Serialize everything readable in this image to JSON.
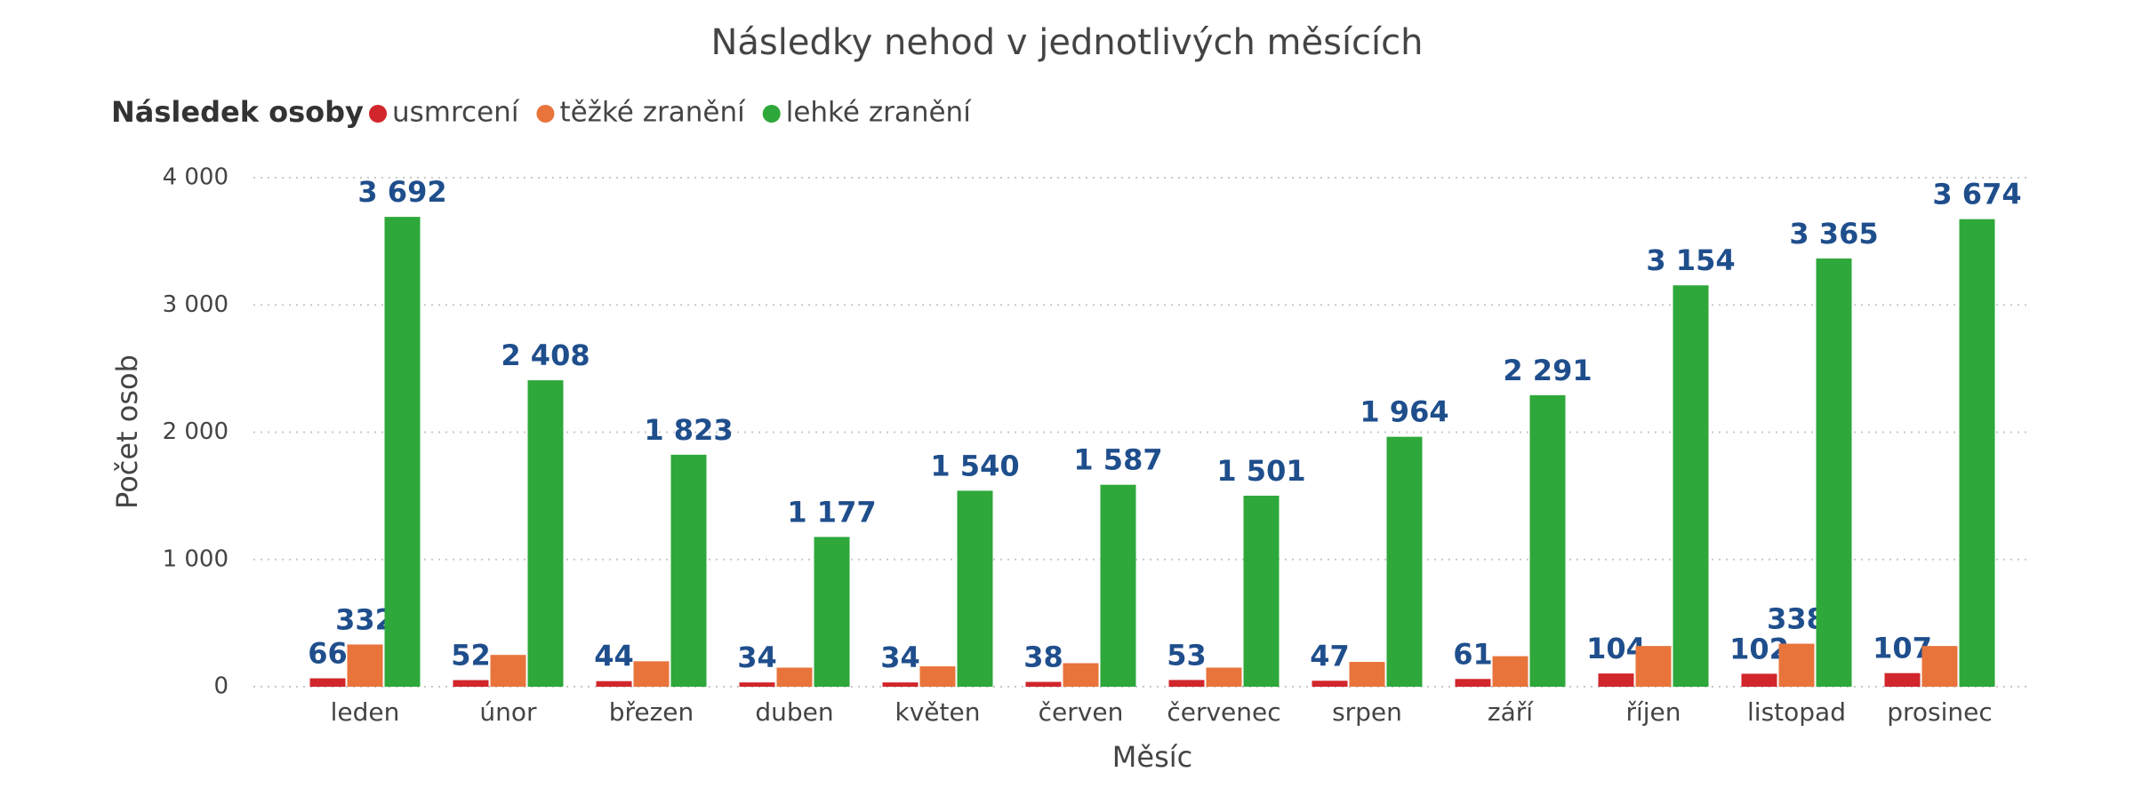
{
  "chart_data": {
    "type": "bar",
    "title": "Následky nehod v jednotlivých měsících",
    "legend_title": "Následek osoby",
    "x_label": "Měsíc",
    "y_label": "Počet osob",
    "categories": [
      "leden",
      "únor",
      "březen",
      "duben",
      "květen",
      "červen",
      "červenec",
      "srpen",
      "září",
      "říjen",
      "listopad",
      "prosinec"
    ],
    "series": [
      {
        "name": "usmrcení",
        "color": "#d1262b",
        "values": [
          66,
          52,
          44,
          34,
          34,
          38,
          53,
          47,
          61,
          104,
          102,
          107
        ]
      },
      {
        "name": "těžké zranění",
        "color": "#e8743b",
        "values": [
          332,
          250,
          200,
          150,
          160,
          185,
          150,
          195,
          240,
          320,
          338,
          320
        ],
        "value_labels": [
          "332",
          null,
          null,
          null,
          null,
          null,
          null,
          null,
          null,
          null,
          "338",
          null
        ]
      },
      {
        "name": "lehké zranění",
        "color": "#2ea83a",
        "values": [
          3692,
          2408,
          1823,
          1177,
          1540,
          1587,
          1501,
          1964,
          2291,
          3154,
          3365,
          3674
        ],
        "value_labels": [
          "3 692",
          "2 408",
          "1 823",
          "1 177",
          "1 540",
          "1 587",
          "1 501",
          "1 964",
          "2 291",
          "3 154",
          "3 365",
          "3 674"
        ]
      }
    ],
    "ylim": [
      0,
      4000
    ],
    "yticks": [
      0,
      {
        "value": 1000,
        "label": "1 000"
      },
      {
        "value": 2000,
        "label": "2 000"
      },
      {
        "value": 3000,
        "label": "3 000"
      },
      {
        "value": 4000,
        "label": "4 000"
      }
    ],
    "grid": true
  }
}
